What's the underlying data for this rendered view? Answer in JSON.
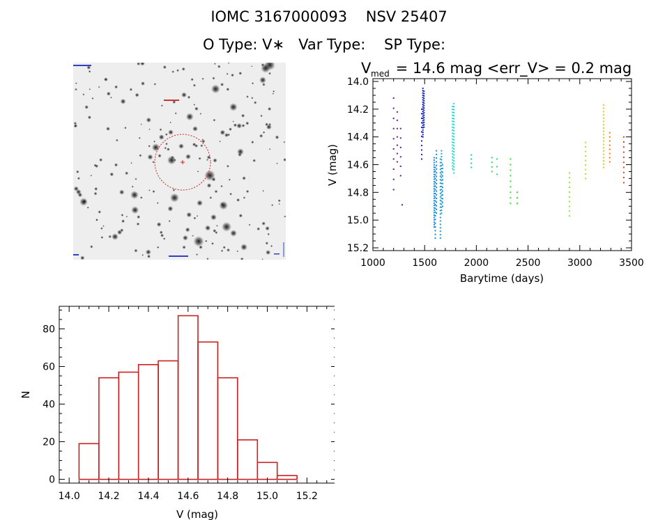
{
  "header": {
    "title": "IOMC 3167000093    NSV 25407",
    "subtitle": "O Type: V∗   Var Type:    SP Type:"
  },
  "chart_data": [
    {
      "type": "scatter",
      "title_prefix": "V",
      "title_sub": "med",
      "title_rest": " = 14.6 mag <err_V> = 0.2 mag",
      "xlabel": "Barytime (days)",
      "ylabel": "V (mag)",
      "xlim": [
        1000,
        3500
      ],
      "ylim": [
        15.22,
        13.98
      ],
      "xticks": [
        "1000",
        "1500",
        "2000",
        "2500",
        "3000",
        "3500"
      ],
      "yticks": [
        "14.0",
        "14.2",
        "14.4",
        "14.6",
        "14.8",
        "15.0",
        "15.2"
      ],
      "grid": false,
      "color_note": "points colored by time (rainbow)",
      "point_groups": [
        {
          "x": 1200,
          "y_min": 14.12,
          "y_max": 14.78,
          "n": 10,
          "color": "#5a1a8c"
        },
        {
          "x": 1235,
          "y_min": 14.22,
          "y_max": 14.58,
          "n": 7,
          "color": "#6a1a9c"
        },
        {
          "x": 1268,
          "y_min": 14.34,
          "y_max": 14.68,
          "n": 6,
          "color": "#5a1a9c"
        },
        {
          "x": 1283,
          "y_min": 14.89,
          "y_max": 14.89,
          "n": 1,
          "color": "#5a1a9c"
        },
        {
          "x": 1472,
          "y_min": 14.2,
          "y_max": 14.56,
          "n": 12,
          "color": "#1a2aa8"
        },
        {
          "x": 1483,
          "y_min": 14.05,
          "y_max": 14.4,
          "n": 22,
          "color": "#1a2aa8"
        },
        {
          "x": 1494,
          "y_min": 14.07,
          "y_max": 14.33,
          "n": 16,
          "color": "#1a2aa8"
        },
        {
          "x": 1592,
          "y_min": 14.55,
          "y_max": 15.05,
          "n": 30,
          "color": "#1a8ad8"
        },
        {
          "x": 1603,
          "y_min": 14.62,
          "y_max": 15.13,
          "n": 20,
          "color": "#1a8ad8"
        },
        {
          "x": 1614,
          "y_min": 14.5,
          "y_max": 14.95,
          "n": 18,
          "color": "#1a8ad8"
        },
        {
          "x": 1652,
          "y_min": 14.56,
          "y_max": 15.13,
          "n": 24,
          "color": "#1aa0d8"
        },
        {
          "x": 1663,
          "y_min": 14.5,
          "y_max": 14.95,
          "n": 22,
          "color": "#1aa0d8"
        },
        {
          "x": 1674,
          "y_min": 14.6,
          "y_max": 14.9,
          "n": 12,
          "color": "#1aa0d8"
        },
        {
          "x": 1770,
          "y_min": 14.18,
          "y_max": 14.63,
          "n": 22,
          "color": "#1ad8d8"
        },
        {
          "x": 1783,
          "y_min": 14.16,
          "y_max": 14.66,
          "n": 24,
          "color": "#1ad8d8"
        },
        {
          "x": 1950,
          "y_min": 14.53,
          "y_max": 14.62,
          "n": 4,
          "color": "#1ad8a8"
        },
        {
          "x": 2150,
          "y_min": 14.55,
          "y_max": 14.65,
          "n": 4,
          "color": "#2ad86a"
        },
        {
          "x": 2200,
          "y_min": 14.56,
          "y_max": 14.67,
          "n": 3,
          "color": "#2ad86a"
        },
        {
          "x": 2330,
          "y_min": 14.56,
          "y_max": 14.88,
          "n": 9,
          "color": "#3ad83a"
        },
        {
          "x": 2395,
          "y_min": 14.8,
          "y_max": 14.88,
          "n": 3,
          "color": "#3ad83a"
        },
        {
          "x": 2900,
          "y_min": 14.66,
          "y_max": 14.97,
          "n": 10,
          "color": "#8ae83a"
        },
        {
          "x": 3055,
          "y_min": 14.44,
          "y_max": 14.7,
          "n": 9,
          "color": "#aae82a"
        },
        {
          "x": 3230,
          "y_min": 14.17,
          "y_max": 14.62,
          "n": 20,
          "color": "#e8c81a"
        },
        {
          "x": 3290,
          "y_min": 14.37,
          "y_max": 14.58,
          "n": 8,
          "color": "#e87a1a"
        },
        {
          "x": 3425,
          "y_min": 14.4,
          "y_max": 14.73,
          "n": 10,
          "color": "#c8481a"
        }
      ]
    },
    {
      "type": "bar",
      "subtype": "histogram",
      "xlabel": "V (mag)",
      "ylabel": "N",
      "bin_edges": [
        14.05,
        14.15,
        14.25,
        14.35,
        14.45,
        14.55,
        14.65,
        14.75,
        14.85,
        14.95,
        15.05,
        15.15
      ],
      "values": [
        19,
        54,
        57,
        61,
        63,
        87,
        73,
        54,
        21,
        9,
        2
      ],
      "xlim": [
        13.95,
        15.35
      ],
      "ylim": [
        -2,
        92
      ],
      "xticks": [
        "14.0",
        "14.2",
        "14.4",
        "14.6",
        "14.8",
        "15.0",
        "15.2"
      ],
      "yticks": [
        "0",
        "20",
        "40",
        "60",
        "80"
      ],
      "bar_color": "#cc2020"
    }
  ]
}
